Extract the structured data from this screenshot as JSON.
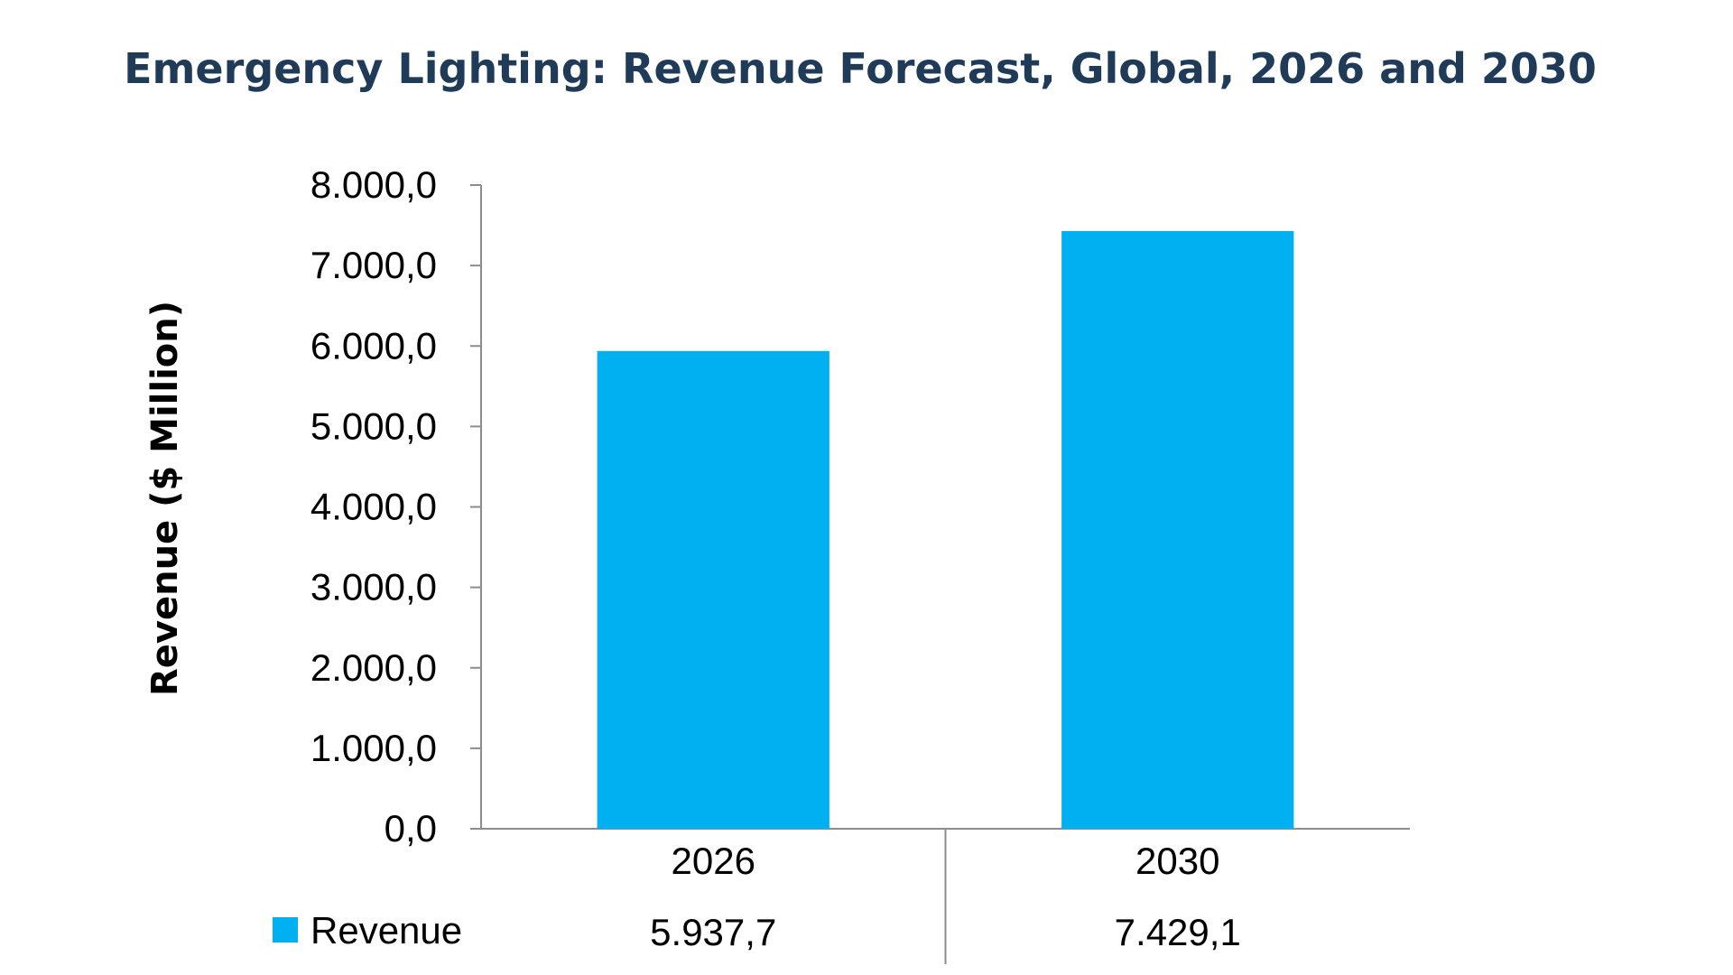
{
  "chart_data": {
    "type": "bar",
    "title": "Emergency Lighting: Revenue Forecast, Global, 2026 and 2030",
    "ylabel": "Revenue ($ Million)",
    "xlabel": "",
    "categories": [
      "2026",
      "2030"
    ],
    "series": [
      {
        "name": "Revenue",
        "values": [
          5937.7,
          7429.1
        ],
        "value_labels": [
          "5.937,7",
          "7.429,1"
        ],
        "color": "#00b0f0"
      }
    ],
    "ylim": [
      0,
      8000
    ],
    "y_ticks": [
      0,
      1000,
      2000,
      3000,
      4000,
      5000,
      6000,
      7000,
      8000
    ],
    "y_tick_labels": [
      "0,0",
      "1.000,0",
      "2.000,0",
      "3.000,0",
      "4.000,0",
      "5.000,0",
      "6.000,0",
      "7.000,0",
      "8.000,0"
    ],
    "grid": false,
    "legend": "data-table-below"
  }
}
